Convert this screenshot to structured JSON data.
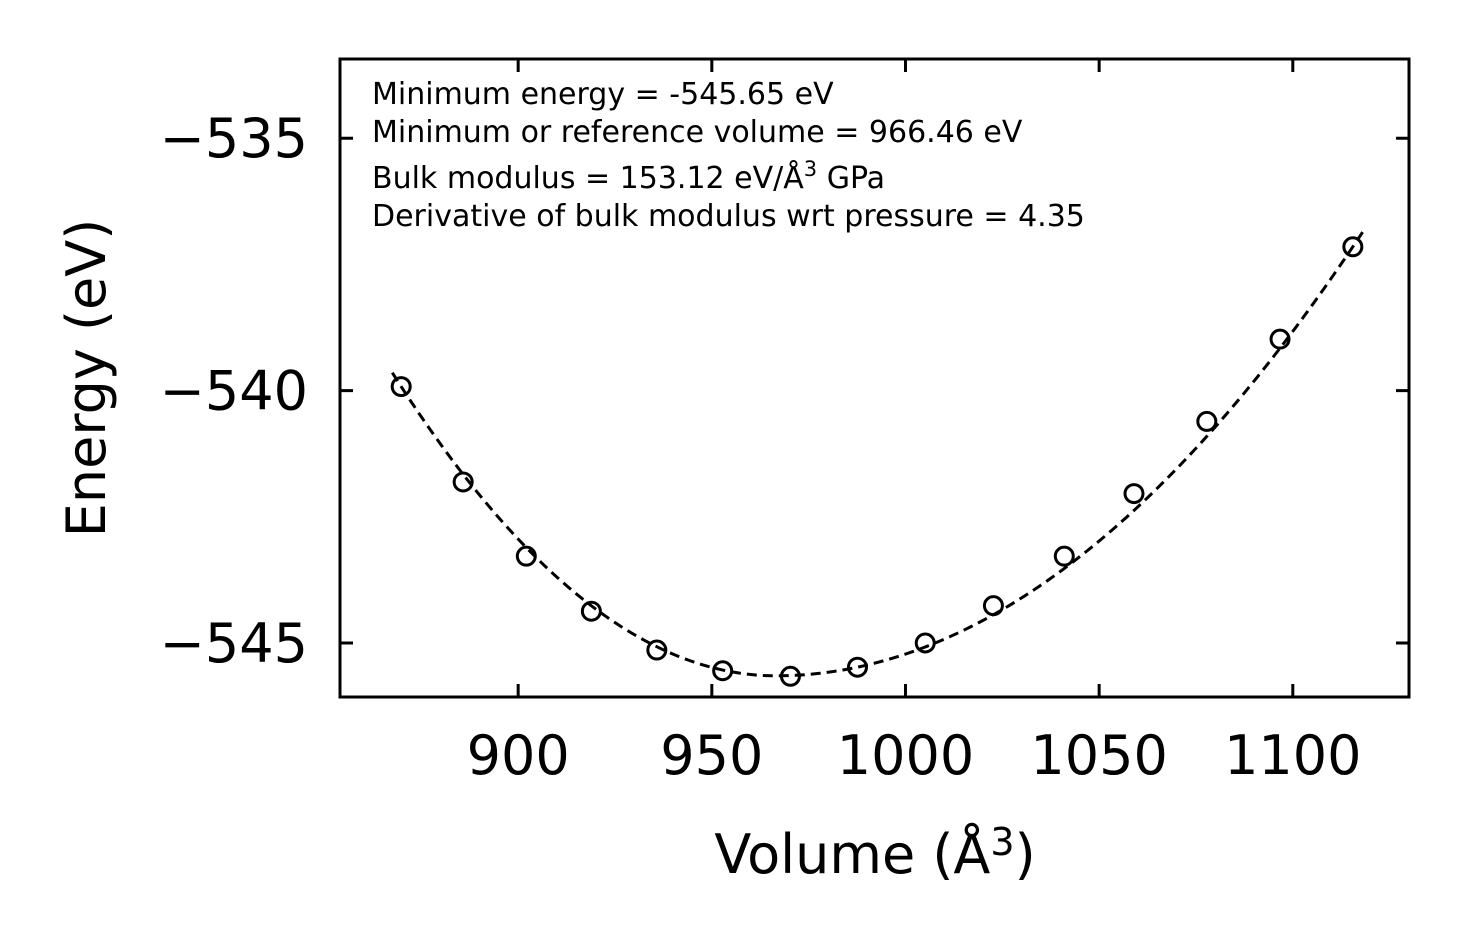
{
  "chart_data": {
    "type": "scatter",
    "title": "",
    "xlabel": "Volume (Å",
    "xlabel_sup": "3",
    "xlabel_close": ")",
    "ylabel": "Energy (eV)",
    "xlim": [
      854,
      1130
    ],
    "ylim": [
      -546.07,
      -533.43
    ],
    "xticks": [
      900,
      950,
      1000,
      1050,
      1100
    ],
    "xtick_labels": [
      "900",
      "950",
      "1000",
      "1050",
      "1100"
    ],
    "yticks": [
      -535,
      -540,
      -545
    ],
    "ytick_labels": [
      "−535",
      "−540",
      "−545"
    ],
    "series": [
      {
        "name": "data",
        "marker": "open-circle",
        "x": [
          869.8,
          885.8,
          902.1,
          918.9,
          935.8,
          952.8,
          970.3,
          987.6,
          1005.1,
          1022.7,
          1041.0,
          1059.0,
          1077.8,
          1096.7,
          1115.5
        ],
        "y": [
          -539.92,
          -541.81,
          -543.28,
          -544.37,
          -545.14,
          -545.55,
          -545.66,
          -545.48,
          -545.0,
          -544.26,
          -543.28,
          -542.04,
          -540.61,
          -538.98,
          -537.15
        ]
      },
      {
        "name": "fit",
        "style": "dashed",
        "E0": -545.65,
        "V0": 966.46,
        "x_range": [
          867.5,
          1118.5
        ]
      }
    ],
    "annotations": [
      "Minimum energy = -545.65 eV",
      "Minimum or reference volume = 966.46 eV",
      "Bulk modulus = 153.12 eV/Å",
      "Derivative of bulk modulus wrt pressure = 4.35"
    ],
    "annotation_bulk_sup": "3",
    "annotation_bulk_unit": " GPa"
  }
}
